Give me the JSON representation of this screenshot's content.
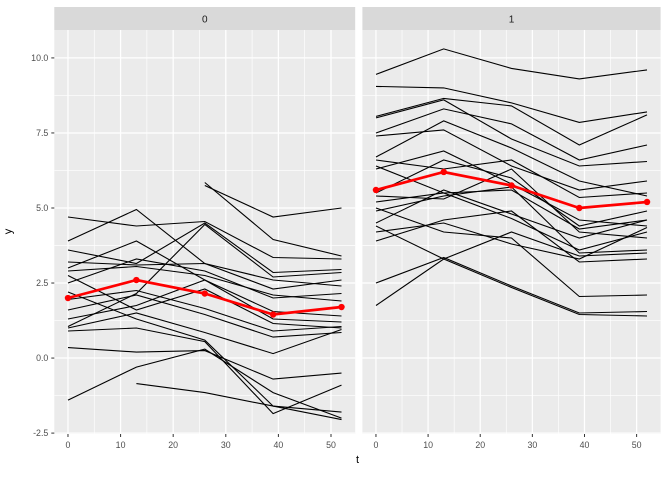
{
  "figure": {
    "background": "#FFFFFF",
    "panel_background": "#EBEBEB",
    "strip_background": "#D9D9D9",
    "grid_color": "#FFFFFF",
    "line_color": "#000000",
    "mean_color": "#FF0000",
    "tick_label_color": "#4D4D4D",
    "strip_label_color": "#1A1A1A",
    "xlabel": "t",
    "ylabel": "y"
  },
  "chart_data": {
    "type": "line",
    "description": "Faceted spaghetti plot of individual trajectories y over time t with red mean line, facets 0 and 1",
    "x": [
      0,
      13,
      26,
      39,
      52
    ],
    "x_range": [
      -2.6,
      54.6
    ],
    "y_range": [
      -2.53,
      10.93
    ],
    "x_ticks": [
      {
        "v": 0,
        "label": "0"
      },
      {
        "v": 10,
        "label": "10"
      },
      {
        "v": 20,
        "label": "20"
      },
      {
        "v": 30,
        "label": "30"
      },
      {
        "v": 40,
        "label": "40"
      },
      {
        "v": 50,
        "label": "50"
      }
    ],
    "y_ticks": [
      {
        "v": 10.0,
        "label": "10.0"
      },
      {
        "v": 7.5,
        "label": "7.5"
      },
      {
        "v": 5.0,
        "label": "5.0"
      },
      {
        "v": 2.5,
        "label": "2.5"
      },
      {
        "v": 0.0,
        "label": "0.0"
      },
      {
        "v": -2.5,
        "label": "-2.5"
      }
    ],
    "x_minor_breaks": [
      5,
      15,
      25,
      35,
      45
    ],
    "y_minor_breaks": [
      -1.25,
      1.25,
      3.75,
      6.25,
      8.75
    ],
    "xlabel": "t",
    "ylabel": "y",
    "legend": "none",
    "facets": [
      {
        "label": "0",
        "mean": [
          2.0,
          2.6,
          2.15,
          1.45,
          1.7
        ],
        "series": [
          [
            4.7,
            4.4,
            4.55,
            3.35,
            3.3
          ],
          [
            3.0,
            3.9,
            2.6,
            1.55,
            1.4
          ],
          [
            3.9,
            4.95,
            3.15,
            2.3,
            2.6
          ],
          [
            3.6,
            3.15,
            4.5,
            2.85,
            2.95
          ],
          [
            3.2,
            3.1,
            3.15,
            2.6,
            2.4
          ],
          [
            2.9,
            3.05,
            2.75,
            2.1,
            1.9
          ],
          [
            2.75,
            1.6,
            2.3,
            1.15,
            1.0
          ],
          [
            2.5,
            3.3,
            2.9,
            2.0,
            2.15
          ],
          [
            1.95,
            2.25,
            1.65,
            0.9,
            1.05
          ],
          [
            1.6,
            2.1,
            1.45,
            0.7,
            0.85
          ],
          [
            1.3,
            1.75,
            2.6,
            1.3,
            1.2
          ],
          [
            1.05,
            2.15,
            4.45,
            2.7,
            2.85
          ],
          [
            1.0,
            1.5,
            0.85,
            0.15,
            0.95
          ],
          [
            0.35,
            0.2,
            0.25,
            -0.7,
            -0.5
          ],
          [
            -1.4,
            -0.3,
            0.3,
            -1.15,
            -2.0
          ],
          [
            null,
            -0.85,
            -1.15,
            -1.6,
            -2.05
          ],
          [
            null,
            null,
            5.75,
            4.7,
            5.0
          ],
          [
            null,
            null,
            5.85,
            3.95,
            3.4
          ],
          [
            0.9,
            1.0,
            0.55,
            -1.85,
            -0.9
          ],
          [
            2.2,
            1.3,
            0.6,
            -1.6,
            -1.8
          ]
        ]
      },
      {
        "label": "1",
        "mean": [
          5.6,
          6.2,
          5.75,
          5.0,
          5.2
        ],
        "series": [
          [
            9.45,
            10.3,
            9.65,
            9.3,
            9.6
          ],
          [
            9.05,
            9.0,
            8.5,
            7.85,
            8.2
          ],
          [
            8.05,
            8.65,
            8.4,
            7.1,
            8.1
          ],
          [
            8.0,
            8.6,
            7.3,
            6.4,
            6.55
          ],
          [
            7.5,
            8.3,
            7.8,
            6.6,
            7.1
          ],
          [
            7.4,
            7.6,
            6.4,
            5.6,
            5.9
          ],
          [
            6.7,
            7.9,
            7.0,
            5.9,
            5.4
          ],
          [
            6.6,
            6.3,
            6.6,
            5.35,
            5.5
          ],
          [
            6.4,
            5.5,
            5.6,
            4.3,
            4.6
          ],
          [
            6.3,
            6.9,
            5.8,
            4.6,
            4.4
          ],
          [
            5.5,
            6.6,
            6.0,
            4.4,
            4.9
          ],
          [
            5.4,
            5.3,
            6.3,
            4.2,
            4.0
          ],
          [
            5.2,
            5.5,
            4.65,
            3.6,
            4.2
          ],
          [
            4.9,
            5.4,
            5.7,
            3.5,
            3.6
          ],
          [
            4.5,
            5.6,
            4.8,
            4.0,
            4.6
          ],
          [
            4.4,
            3.3,
            4.2,
            3.4,
            3.5
          ],
          [
            1.75,
            3.3,
            2.35,
            1.45,
            1.4
          ],
          [
            2.5,
            3.35,
            2.4,
            1.5,
            1.55
          ],
          [
            4.2,
            4.5,
            3.8,
            3.3,
            4.35
          ],
          [
            3.9,
            4.6,
            4.9,
            3.2,
            3.3
          ],
          [
            5.0,
            4.2,
            4.0,
            2.05,
            2.1
          ]
        ]
      }
    ]
  }
}
